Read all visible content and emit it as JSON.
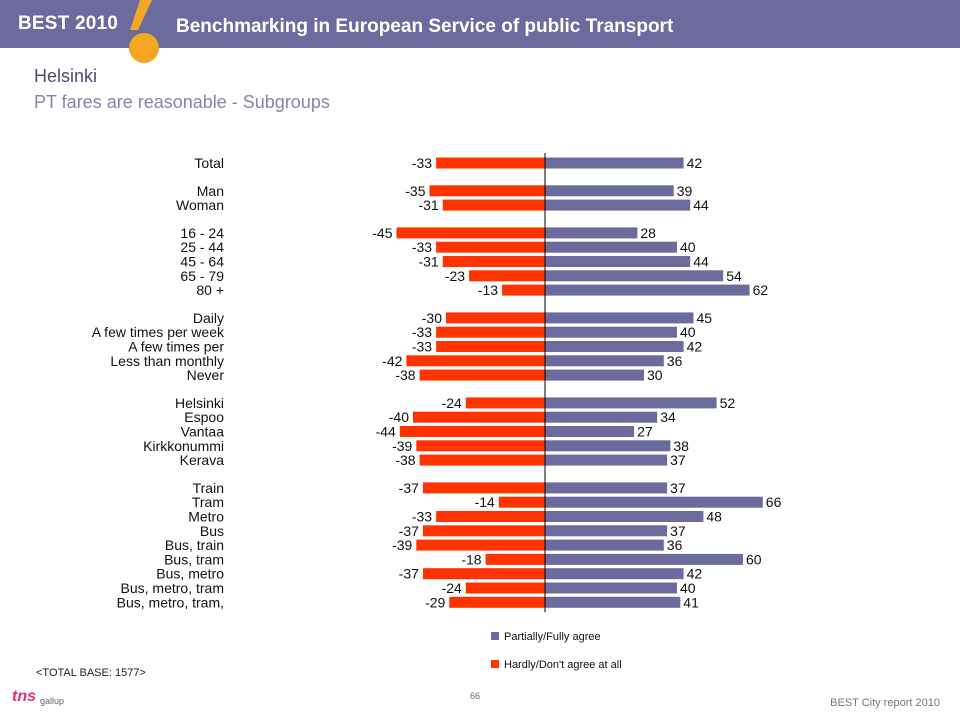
{
  "header": {
    "brand": "BEST",
    "year": "2010",
    "title": "Benchmarking in European Service of public Transport"
  },
  "page": {
    "title": "Helsinki",
    "subtitle": "PT fares are reasonable - Subgroups",
    "base_note": "<TOTAL BASE: 1577>",
    "page_number": "66",
    "report_label": "BEST City report 2010",
    "logo_main": "tns",
    "logo_sub": "gallup"
  },
  "colors": {
    "agree": "#6b6b9e",
    "disagree": "#ff3300",
    "header_bg": "#6b6b9e",
    "accent_orange": "#f5a623"
  },
  "chart_data": {
    "type": "bar",
    "orientation": "horizontal-diverging",
    "x_axis": "hidden",
    "legend_position": "bottom-center",
    "legend": [
      {
        "key": "agree",
        "label": "Partially/Fully agree"
      },
      {
        "key": "disagree",
        "label": "Hardly/Don't agree at all"
      }
    ],
    "groups": [
      {
        "rows": [
          {
            "label": "Total",
            "agree": 42,
            "disagree": -33
          }
        ]
      },
      {
        "rows": [
          {
            "label": "Man",
            "agree": 39,
            "disagree": -35
          },
          {
            "label": "Woman",
            "agree": 44,
            "disagree": -31
          }
        ]
      },
      {
        "rows": [
          {
            "label": "16 - 24",
            "agree": 28,
            "disagree": -45
          },
          {
            "label": "25 - 44",
            "agree": 40,
            "disagree": -33
          },
          {
            "label": "45 - 64",
            "agree": 44,
            "disagree": -31
          },
          {
            "label": "65 - 79",
            "agree": 54,
            "disagree": -23
          },
          {
            "label": "80 +",
            "agree": 62,
            "disagree": -13
          }
        ]
      },
      {
        "rows": [
          {
            "label": "Daily",
            "agree": 45,
            "disagree": -30
          },
          {
            "label": "A few times per week",
            "agree": 40,
            "disagree": -33
          },
          {
            "label": "A few times per",
            "agree": 42,
            "disagree": -33
          },
          {
            "label": "Less than monthly",
            "agree": 36,
            "disagree": -42
          },
          {
            "label": "Never",
            "agree": 30,
            "disagree": -38
          }
        ]
      },
      {
        "rows": [
          {
            "label": "Helsinki",
            "agree": 52,
            "disagree": -24
          },
          {
            "label": "Espoo",
            "agree": 34,
            "disagree": -40
          },
          {
            "label": "Vantaa",
            "agree": 27,
            "disagree": -44
          },
          {
            "label": "Kirkkonummi",
            "agree": 38,
            "disagree": -39
          },
          {
            "label": "Kerava",
            "agree": 37,
            "disagree": -38
          }
        ]
      },
      {
        "rows": [
          {
            "label": "Train",
            "agree": 37,
            "disagree": -37
          },
          {
            "label": "Tram",
            "agree": 66,
            "disagree": -14
          },
          {
            "label": "Metro",
            "agree": 48,
            "disagree": -33
          },
          {
            "label": "Bus",
            "agree": 37,
            "disagree": -37
          },
          {
            "label": "Bus, train",
            "agree": 36,
            "disagree": -39
          },
          {
            "label": "Bus, tram",
            "agree": 60,
            "disagree": -18
          },
          {
            "label": "Bus, metro",
            "agree": 42,
            "disagree": -37
          },
          {
            "label": "Bus, metro, tram",
            "agree": 40,
            "disagree": -24
          },
          {
            "label": "Bus, metro, tram,",
            "agree": 41,
            "disagree": -29
          }
        ]
      }
    ]
  }
}
